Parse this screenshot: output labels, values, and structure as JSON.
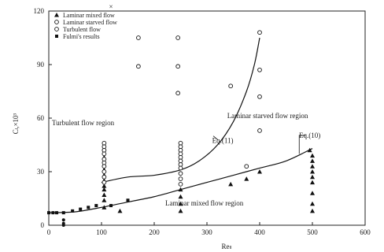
{
  "chart_data": {
    "type": "scatter",
    "title": "",
    "xlabel": "Reₗₗ",
    "ylabel": "Cₗ,×10³",
    "xlim": [
      0,
      600
    ],
    "ylim": [
      0,
      120
    ],
    "xticks": [
      "0",
      "100",
      "200",
      "300",
      "400",
      "500",
      "600"
    ],
    "yticks": [
      "0",
      "30",
      "60",
      "90",
      "120"
    ],
    "grid": false,
    "legend_position": "top-left",
    "legend": [
      {
        "label": "Laminar mixed flow",
        "marker": "triangle"
      },
      {
        "label": "Laminar starved flow",
        "marker": "circle"
      },
      {
        "label": "Turbulent flow",
        "marker": "circle"
      },
      {
        "label": "Fulmi's results",
        "marker": "square"
      }
    ],
    "annotations": [
      {
        "text": "Turbulent flow region",
        "x": 65,
        "y": 56
      },
      {
        "text": "Laminar starved flow region",
        "x": 415,
        "y": 60
      },
      {
        "text": "Laminar mixed flow region",
        "x": 295,
        "y": 11
      },
      {
        "text": "Eq.(11)",
        "x": 330,
        "y": 46
      },
      {
        "text": "Eq.(10)",
        "x": 495,
        "y": 49
      },
      {
        "text": "×",
        "x": 118,
        "y": 121
      }
    ],
    "series": [
      {
        "name": "Laminar mixed flow",
        "marker": "triangle",
        "points": [
          [
            105,
            43
          ],
          [
            105,
            38
          ],
          [
            105,
            34
          ],
          [
            105,
            31
          ],
          [
            105,
            28
          ],
          [
            105,
            25
          ],
          [
            105,
            22
          ],
          [
            105,
            20
          ],
          [
            105,
            17
          ],
          [
            105,
            14
          ],
          [
            105,
            10
          ],
          [
            135,
            8
          ],
          [
            250,
            20
          ],
          [
            250,
            16
          ],
          [
            250,
            12
          ],
          [
            250,
            8
          ],
          [
            345,
            23
          ],
          [
            375,
            26
          ],
          [
            400,
            30
          ],
          [
            495,
            42
          ],
          [
            500,
            39
          ],
          [
            500,
            36
          ],
          [
            500,
            33
          ],
          [
            500,
            30
          ],
          [
            500,
            27
          ],
          [
            500,
            24
          ],
          [
            500,
            18
          ],
          [
            500,
            12
          ],
          [
            500,
            8
          ]
        ]
      },
      {
        "name": "Laminar starved flow",
        "marker": "circle",
        "points": [
          [
            170,
            105
          ],
          [
            170,
            89
          ],
          [
            245,
            105
          ],
          [
            245,
            89
          ],
          [
            245,
            74
          ],
          [
            345,
            78
          ],
          [
            400,
            108
          ],
          [
            400,
            87
          ],
          [
            400,
            72
          ],
          [
            400,
            53
          ]
        ]
      },
      {
        "name": "Turbulent flow",
        "marker": "circle",
        "points": [
          [
            105,
            46
          ],
          [
            105,
            44
          ],
          [
            105,
            42
          ],
          [
            105,
            40
          ],
          [
            105,
            37
          ],
          [
            105,
            35
          ],
          [
            105,
            33
          ],
          [
            105,
            30
          ],
          [
            105,
            27
          ],
          [
            105,
            24
          ],
          [
            250,
            46
          ],
          [
            250,
            44
          ],
          [
            250,
            42
          ],
          [
            250,
            40
          ],
          [
            250,
            38
          ],
          [
            250,
            36
          ],
          [
            250,
            34
          ],
          [
            250,
            32
          ],
          [
            250,
            29
          ],
          [
            250,
            26
          ],
          [
            250,
            23
          ],
          [
            375,
            33
          ]
        ]
      },
      {
        "name": "Fulmi's results",
        "marker": "square",
        "points": [
          [
            0,
            7
          ],
          [
            8,
            7
          ],
          [
            15,
            7
          ],
          [
            28,
            7
          ],
          [
            45,
            8
          ],
          [
            60,
            9
          ],
          [
            75,
            10
          ],
          [
            90,
            11
          ],
          [
            118,
            11
          ],
          [
            150,
            14
          ]
        ]
      },
      {
        "name": "",
        "marker": "dot",
        "points": [
          [
            28,
            3
          ],
          [
            28,
            1
          ],
          [
            28,
            0
          ]
        ]
      }
    ],
    "curves": [
      {
        "name": "Eq.(11)",
        "points": [
          [
            100,
            24
          ],
          [
            150,
            27
          ],
          [
            200,
            28
          ],
          [
            250,
            31
          ],
          [
            285,
            36
          ],
          [
            320,
            45
          ],
          [
            350,
            58
          ],
          [
            375,
            75
          ],
          [
            390,
            90
          ],
          [
            400,
            105
          ]
        ]
      },
      {
        "name": "Eq.(10)",
        "points": [
          [
            0,
            7
          ],
          [
            50,
            7.5
          ],
          [
            100,
            10
          ],
          [
            150,
            13
          ],
          [
            200,
            16
          ],
          [
            250,
            20
          ],
          [
            300,
            24
          ],
          [
            350,
            28
          ],
          [
            400,
            32
          ],
          [
            450,
            36
          ],
          [
            500,
            43
          ]
        ]
      }
    ]
  }
}
